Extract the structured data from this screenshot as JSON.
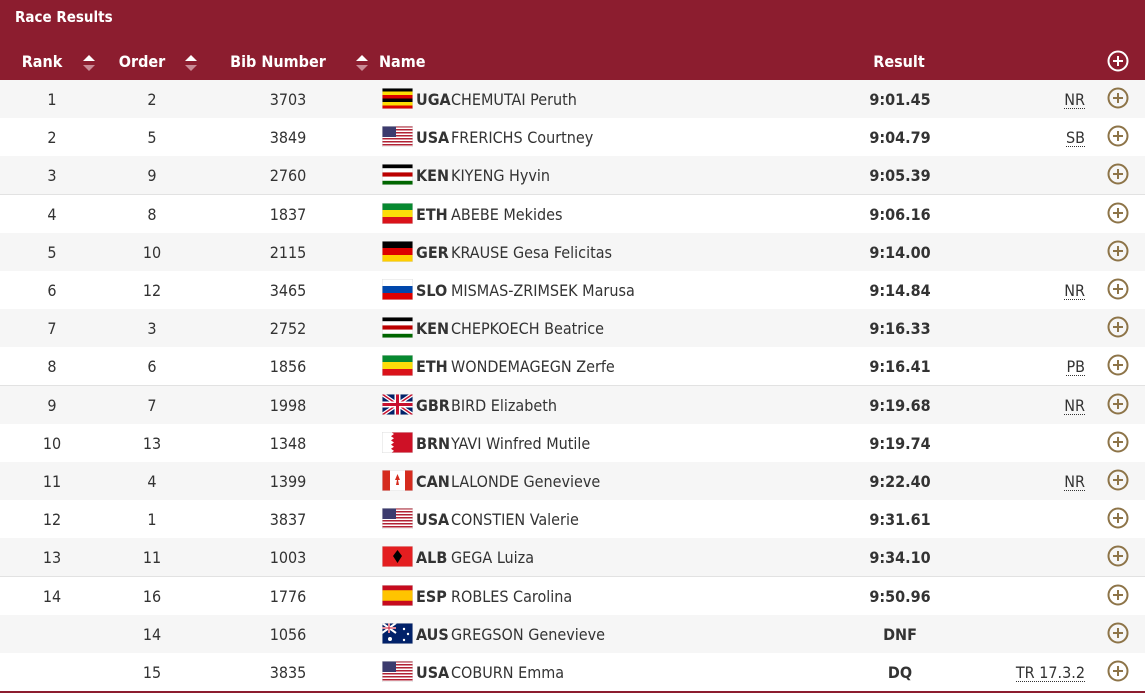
{
  "header": {
    "title": "Race Results"
  },
  "table": {
    "columns": [
      "Rank",
      "Order",
      "Bib Number",
      "Name",
      "Result"
    ],
    "rows": [
      {
        "rank": 1,
        "order": 2,
        "bib": 3703,
        "country": "UGA",
        "name": "CHEMUTAI Peruth",
        "result": "9:01.45",
        "note": "NR"
      },
      {
        "rank": 2,
        "order": 5,
        "bib": 3849,
        "country": "USA",
        "name": "FRERICHS Courtney",
        "result": "9:04.79",
        "note": "SB"
      },
      {
        "rank": 3,
        "order": 9,
        "bib": 2760,
        "country": "KEN",
        "name": "KIYENG Hyvin",
        "result": "9:05.39"
      },
      {
        "rank": 4,
        "order": 8,
        "bib": 1837,
        "country": "ETH",
        "name": "ABEBE Mekides",
        "result": "9:06.16"
      },
      {
        "rank": 5,
        "order": 10,
        "bib": 2115,
        "country": "GER",
        "name": "KRAUSE Gesa Felicitas",
        "result": "9:14.00"
      },
      {
        "rank": 6,
        "order": 12,
        "bib": 3465,
        "country": "SLO",
        "name": "MISMAS-ZRIMSEK Marusa",
        "result": "9:14.84",
        "note": "NR"
      },
      {
        "rank": 7,
        "order": 3,
        "bib": 2752,
        "country": "KEN",
        "name": "CHEPKOECH Beatrice",
        "result": "9:16.33"
      },
      {
        "rank": 8,
        "order": 6,
        "bib": 1856,
        "country": "ETH",
        "name": "WONDEMAGEGN Zerfe",
        "result": "9:16.41",
        "note": "PB"
      },
      {
        "rank": 9,
        "order": 7,
        "bib": 1998,
        "country": "GBR",
        "name": "BIRD Elizabeth",
        "result": "9:19.68",
        "note": "NR"
      },
      {
        "rank": 10,
        "order": 13,
        "bib": 1348,
        "country": "BRN",
        "name": "YAVI Winfred Mutile",
        "result": "9:19.74"
      },
      {
        "rank": 11,
        "order": 4,
        "bib": 1399,
        "country": "CAN",
        "name": "LALONDE Genevieve",
        "result": "9:22.40",
        "note": "NR"
      },
      {
        "rank": 12,
        "order": 1,
        "bib": 3837,
        "country": "USA",
        "name": "CONSTIEN Valerie",
        "result": "9:31.61"
      },
      {
        "rank": 13,
        "order": 11,
        "bib": 1003,
        "country": "ALB",
        "name": "GEGA Luiza",
        "result": "9:34.10"
      },
      {
        "rank": 14,
        "order": 16,
        "bib": 1776,
        "country": "ESP",
        "name": "ROBLES Carolina",
        "result": "9:50.96"
      },
      {
        "order": 14,
        "bib": 1056,
        "country": "AUS",
        "name": "GREGSON Genevieve",
        "result": "DNF"
      },
      {
        "order": 15,
        "bib": 3835,
        "country": "USA",
        "name": "COBURN Emma",
        "result": "DQ",
        "note": "TR 17.3.2"
      }
    ]
  }
}
